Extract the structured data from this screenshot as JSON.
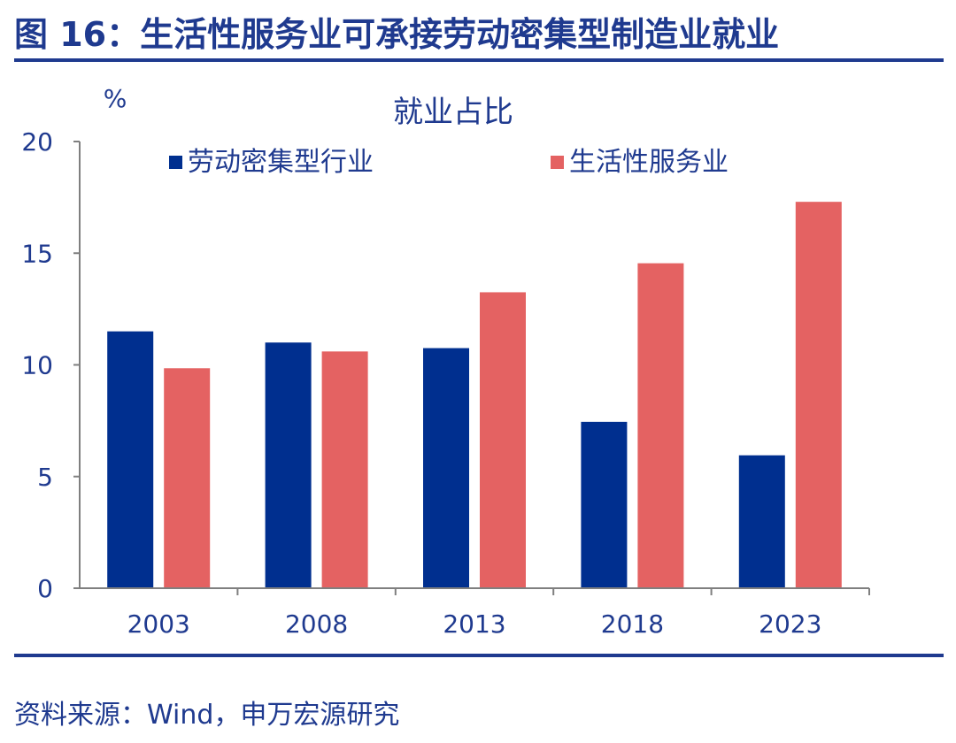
{
  "header": {
    "figure_title": "图 16：生活性服务业可承接劳动密集型制造业就业"
  },
  "footer": {
    "source": "资料来源：Wind，申万宏源研究"
  },
  "colors": {
    "labor_intensive": "#002f8f",
    "life_services": "#e46262",
    "brand_blue": "#1f3a8f"
  },
  "chart_data": {
    "type": "bar",
    "title": "就业占比",
    "ylabel": "%",
    "xlabel": "",
    "ylim": [
      0,
      20
    ],
    "yticks": [
      "0",
      "5",
      "10",
      "15",
      "20"
    ],
    "categories": [
      "2003",
      "2008",
      "2013",
      "2018",
      "2023"
    ],
    "series": [
      {
        "name": "劳动密集型行业",
        "values": [
          11.5,
          11.0,
          10.75,
          7.45,
          5.95
        ]
      },
      {
        "name": "生活性服务业",
        "values": [
          9.85,
          10.6,
          13.25,
          14.55,
          17.3
        ]
      }
    ],
    "legend_position": "top",
    "grid": false
  }
}
